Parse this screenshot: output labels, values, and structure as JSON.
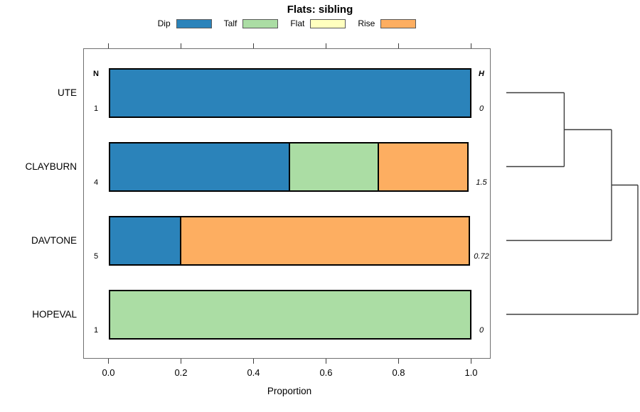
{
  "title": "Flats: sibling",
  "axis": {
    "xlabel": "Proportion",
    "xticks": [
      {
        "label": "0.0",
        "value": 0.0
      },
      {
        "label": "0.2",
        "value": 0.2
      },
      {
        "label": "0.4",
        "value": 0.4
      },
      {
        "label": "0.6",
        "value": 0.6
      },
      {
        "label": "0.8",
        "value": 0.8
      },
      {
        "label": "1.0",
        "value": 1.0
      }
    ]
  },
  "columns": {
    "n_header": "N",
    "h_header": "H"
  },
  "legend": [
    {
      "label": "Dip",
      "color": "#2B83BA"
    },
    {
      "label": "Talf",
      "color": "#ABDDA4"
    },
    {
      "label": "Flat",
      "color": "#FFFFBF"
    },
    {
      "label": "Rise",
      "color": "#FDAE61"
    }
  ],
  "chart_data": {
    "type": "bar",
    "variant": "horizontal-stacked-proportion-with-dendrogram",
    "title": "Flats: sibling",
    "xlabel": "Proportion",
    "xlim": [
      0,
      1
    ],
    "xticks": [
      0.0,
      0.2,
      0.4,
      0.6,
      0.8,
      1.0
    ],
    "grid": false,
    "legend_position": "top",
    "states": [
      "Dip",
      "Talf",
      "Flat",
      "Rise"
    ],
    "state_colors": {
      "Dip": "#2B83BA",
      "Talf": "#ABDDA4",
      "Flat": "#FFFFBF",
      "Rise": "#FDAE61"
    },
    "categories": [
      "UTE",
      "CLAYBURN",
      "DAVTONE",
      "HOPEVAL"
    ],
    "rows": [
      {
        "label": "UTE",
        "n": "1",
        "h": "0",
        "segments": [
          {
            "state": "Dip",
            "value": 1.0
          }
        ]
      },
      {
        "label": "CLAYBURN",
        "n": "4",
        "h": "1.5",
        "segments": [
          {
            "state": "Dip",
            "value": 0.5
          },
          {
            "state": "Talf",
            "value": 0.25
          },
          {
            "state": "Rise",
            "value": 0.25
          }
        ]
      },
      {
        "label": "DAVTONE",
        "n": "5",
        "h": "0.72",
        "segments": [
          {
            "state": "Dip",
            "value": 0.2
          },
          {
            "state": "Rise",
            "value": 0.8
          }
        ]
      },
      {
        "label": "HOPEVAL",
        "n": "1",
        "h": "0",
        "segments": [
          {
            "state": "Talf",
            "value": 1.0
          }
        ]
      }
    ],
    "dendrogram": {
      "orientation": "right",
      "leaves": [
        "UTE",
        "CLAYBURN",
        "DAVTONE",
        "HOPEVAL"
      ],
      "merges": [
        {
          "id": "merge0",
          "children": [
            "UTE",
            "CLAYBURN"
          ],
          "rel_height": 0.44
        },
        {
          "id": "merge1",
          "children": [
            "merge0",
            "DAVTONE"
          ],
          "rel_height": 0.8
        },
        {
          "id": "merge2",
          "children": [
            "merge1",
            "HOPEVAL"
          ],
          "rel_height": 1.0
        }
      ]
    }
  }
}
